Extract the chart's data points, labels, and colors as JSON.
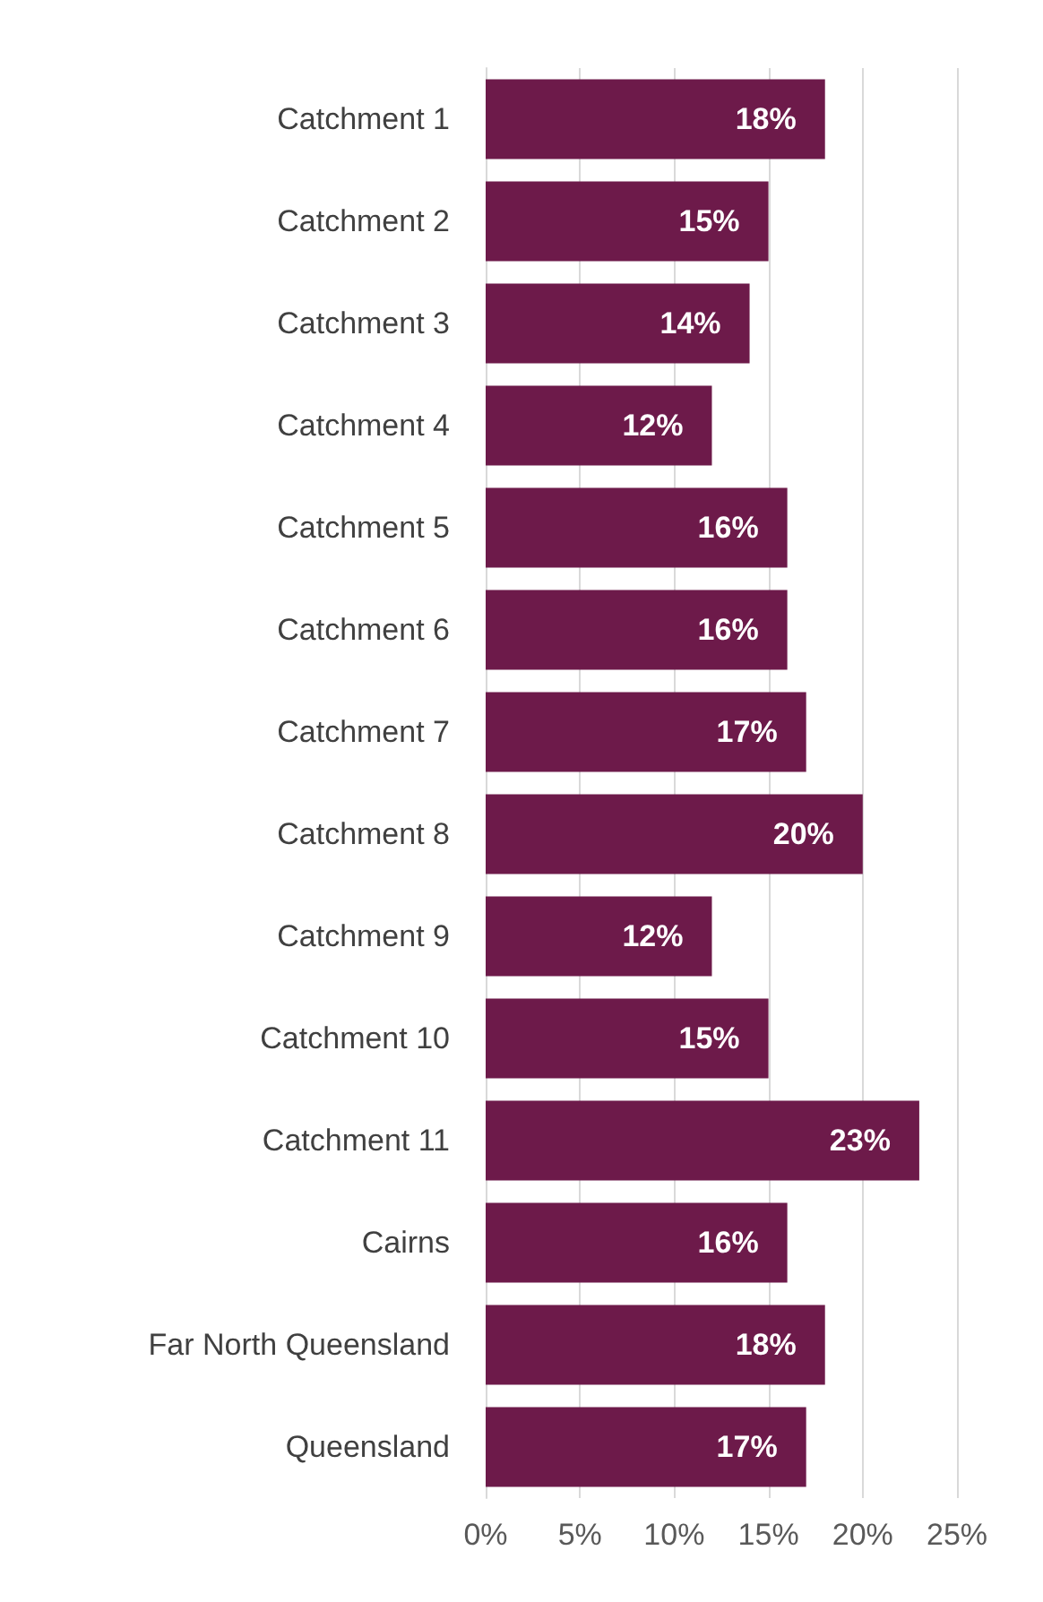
{
  "chart_data": {
    "type": "bar",
    "orientation": "horizontal",
    "categories": [
      "Catchment 1",
      "Catchment 2",
      "Catchment 3",
      "Catchment 4",
      "Catchment 5",
      "Catchment 6",
      "Catchment 7",
      "Catchment 8",
      "Catchment 9",
      "Catchment 10",
      "Catchment 11",
      "Cairns",
      "Far North Queensland",
      "Queensland"
    ],
    "values": [
      18,
      15,
      14,
      12,
      16,
      16,
      17,
      20,
      12,
      15,
      23,
      16,
      18,
      17
    ],
    "value_labels": [
      "18%",
      "15%",
      "14%",
      "12%",
      "16%",
      "16%",
      "17%",
      "20%",
      "12%",
      "15%",
      "23%",
      "16%",
      "18%",
      "17%"
    ],
    "color": "#6d1a4a",
    "xlim": [
      0,
      25
    ],
    "xticks": [
      {
        "value": 0,
        "label": "0%"
      },
      {
        "value": 5,
        "label": "5%"
      },
      {
        "value": 10,
        "label": "10%"
      },
      {
        "value": 15,
        "label": "15%"
      },
      {
        "value": 20,
        "label": "20%"
      },
      {
        "value": 25,
        "label": "25%"
      }
    ],
    "grid": "x"
  }
}
